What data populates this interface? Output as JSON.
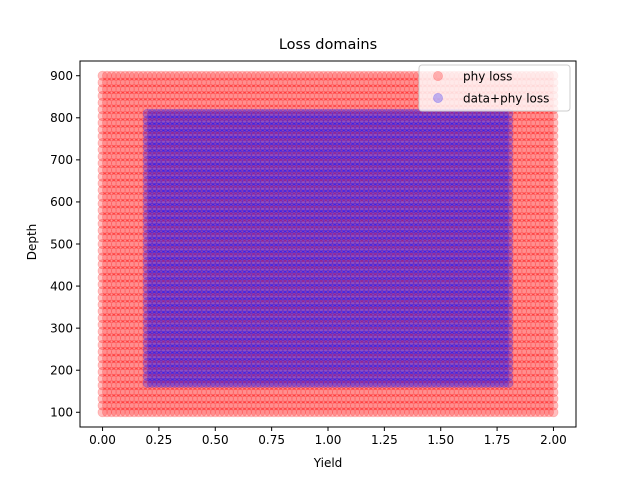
{
  "chart_data": {
    "type": "scatter",
    "title": "Loss domains",
    "xlabel": "Yield",
    "ylabel": "Depth",
    "xlim": [
      -0.1,
      2.1
    ],
    "ylim": [
      65,
      935
    ],
    "xticks": [
      0.0,
      0.25,
      0.5,
      0.75,
      1.0,
      1.25,
      1.5,
      1.75,
      2.0
    ],
    "xtick_labels": [
      "0.00",
      "0.25",
      "0.50",
      "0.75",
      "1.00",
      "1.25",
      "1.50",
      "1.75",
      "2.00"
    ],
    "yticks": [
      100,
      200,
      300,
      400,
      500,
      600,
      700,
      800,
      900
    ],
    "ytick_labels": [
      "100",
      "200",
      "300",
      "400",
      "500",
      "600",
      "700",
      "800",
      "900"
    ],
    "grid": false,
    "legend_position": "top-right",
    "series": [
      {
        "name": "phy loss",
        "color": "#ff0000",
        "alpha": 0.25,
        "x_range": [
          0.0,
          2.0
        ],
        "x_step": 0.02,
        "y_range": [
          100,
          900
        ],
        "y_step": 16
      },
      {
        "name": "data+phy loss",
        "color": "#0000ff",
        "alpha": 0.25,
        "x_range": [
          0.2,
          1.8
        ],
        "x_step": 0.02,
        "y_range": [
          170,
          825
        ],
        "y_step": 16
      }
    ]
  }
}
